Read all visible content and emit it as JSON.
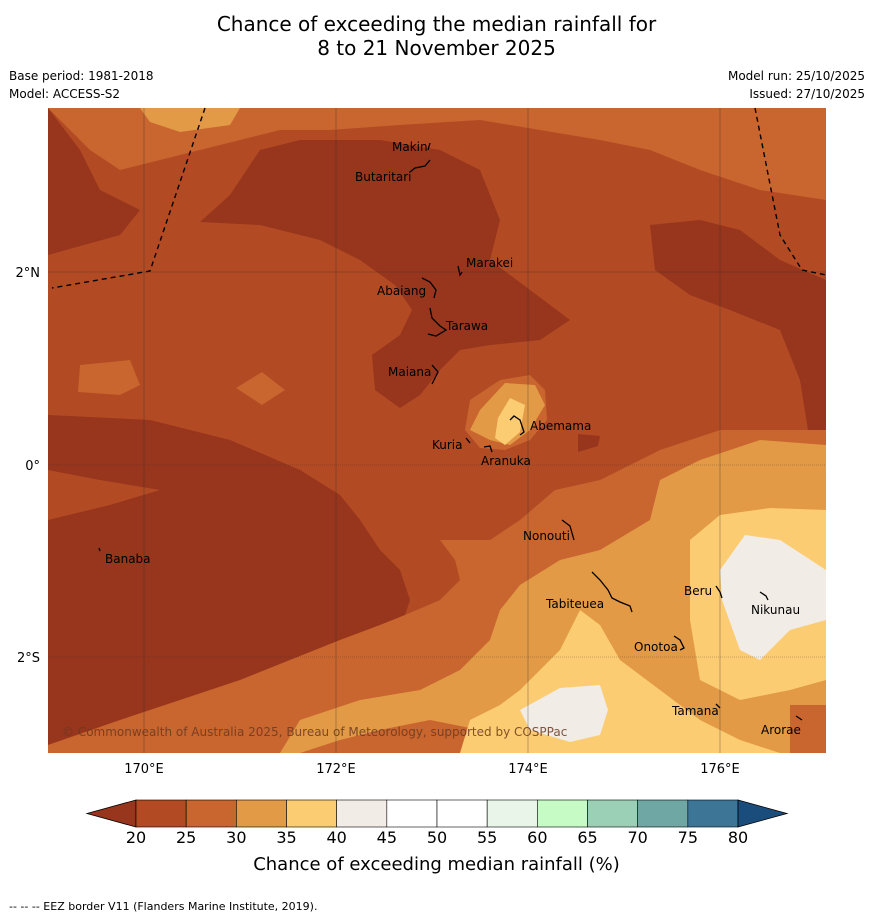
{
  "title": {
    "line1": "Chance of exceeding the median rainfall for",
    "line2": "8 to 21 November 2025"
  },
  "meta": {
    "base_period": "Base period: 1981-2018",
    "model": "Model: ACCESS-S2",
    "model_run": "Model run: 25/10/2025",
    "issued": "Issued: 27/10/2025"
  },
  "axes": {
    "lon_labels": [
      "170°E",
      "172°E",
      "174°E",
      "176°E"
    ],
    "lat_labels": [
      "2°N",
      "0°",
      "2°S"
    ]
  },
  "places": [
    {
      "name": "Makin"
    },
    {
      "name": "Butaritari"
    },
    {
      "name": "Marakei"
    },
    {
      "name": "Abaiang"
    },
    {
      "name": "Tarawa"
    },
    {
      "name": "Maiana"
    },
    {
      "name": "Abemama"
    },
    {
      "name": "Kuria"
    },
    {
      "name": "Aranuka"
    },
    {
      "name": "Nonouti"
    },
    {
      "name": "Banaba"
    },
    {
      "name": "Beru"
    },
    {
      "name": "Tabiteuea"
    },
    {
      "name": "Nikunau"
    },
    {
      "name": "Onotoa"
    },
    {
      "name": "Tamana"
    },
    {
      "name": "Arorae"
    }
  ],
  "copyright": "© Commonwealth of Australia 2025, Bureau of Meteorology, supported by COSPPac",
  "colorbar": {
    "ticks": [
      "20",
      "25",
      "30",
      "35",
      "40",
      "45",
      "50",
      "55",
      "60",
      "65",
      "70",
      "75",
      "80"
    ],
    "colors": [
      "#97351d",
      "#b24a23",
      "#c9652f",
      "#e29a46",
      "#fccc72",
      "#f1ece6",
      "#ffffff",
      "#ffffff",
      "#e8f5e8",
      "#c6fbc6",
      "#9bd0b7",
      "#6fa7a5",
      "#3d7597",
      "#1a4d7c"
    ],
    "title": "Chance of exceeding median rainfall (%)"
  },
  "footer": "--  --  -- EEZ border V11 (Flanders Marine Institute, 2019)."
}
